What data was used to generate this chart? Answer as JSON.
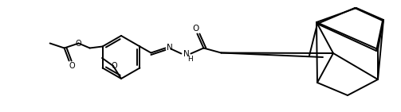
{
  "bg_color": "#ffffff",
  "line_color": "#000000",
  "line_width": 1.4,
  "figsize": [
    5.03,
    1.41
  ],
  "dpi": 100,
  "text_labels": {
    "O_methoxy": "O",
    "O_ester": "O",
    "O_carbonyl1": "O",
    "O_carbonyl2": "O",
    "N1": "N",
    "N2": "N",
    "H": "H"
  }
}
